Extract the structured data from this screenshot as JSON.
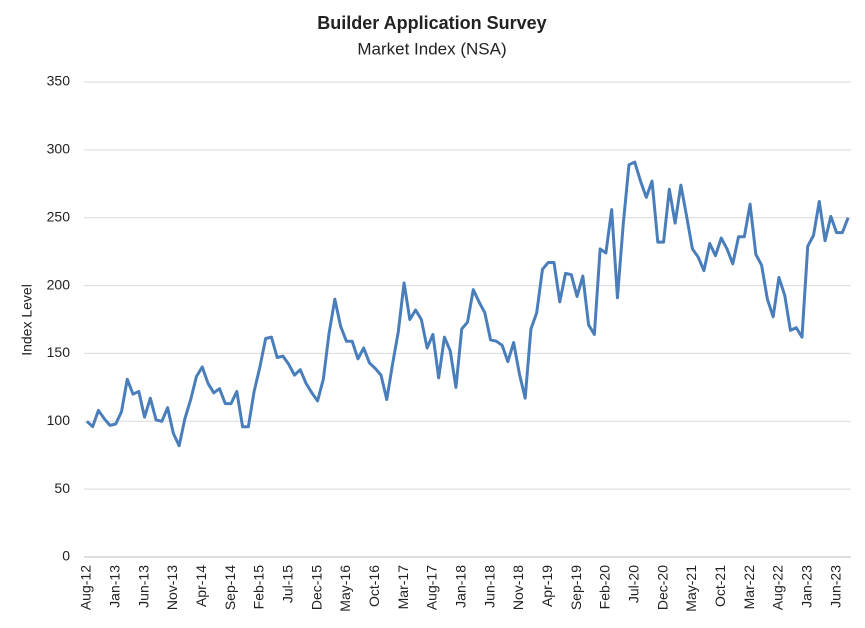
{
  "chart_data": {
    "type": "line",
    "title": "Builder Application Survey",
    "subtitle": "Market Index (NSA)",
    "y_label": "Index Level",
    "categories": [
      "Aug-12",
      null,
      null,
      null,
      null,
      "Jan-13",
      null,
      null,
      null,
      null,
      "Jun-13",
      null,
      null,
      null,
      null,
      "Nov-13",
      null,
      null,
      null,
      null,
      "Apr-14",
      null,
      null,
      null,
      null,
      "Sep-14",
      null,
      null,
      null,
      null,
      "Feb-15",
      null,
      null,
      null,
      null,
      "Jul-15",
      null,
      null,
      null,
      null,
      "Dec-15",
      null,
      null,
      null,
      null,
      "May-16",
      null,
      null,
      null,
      null,
      "Oct-16",
      null,
      null,
      null,
      null,
      "Mar-17",
      null,
      null,
      null,
      null,
      "Aug-17",
      null,
      null,
      null,
      null,
      "Jan-18",
      null,
      null,
      null,
      null,
      "Jun-18",
      null,
      null,
      null,
      null,
      "Nov-18",
      null,
      null,
      null,
      null,
      "Apr-19",
      null,
      null,
      null,
      null,
      "Sep-19",
      null,
      null,
      null,
      null,
      "Feb-20",
      null,
      null,
      null,
      null,
      "Jul-20",
      null,
      null,
      null,
      null,
      "Dec-20",
      null,
      null,
      null,
      null,
      "May-21",
      null,
      null,
      null,
      null,
      "Oct-21",
      null,
      null,
      null,
      null,
      "Mar-22",
      null,
      null,
      null,
      null,
      "Aug-22",
      null,
      null,
      null,
      null,
      "Jan-23",
      null,
      null,
      null,
      null,
      "Jun-23",
      null,
      null
    ],
    "values": [
      100,
      96,
      108,
      102,
      97,
      98,
      107,
      131,
      120,
      122,
      103,
      117,
      101,
      100,
      110,
      91,
      82,
      102,
      116,
      133,
      140,
      128,
      121,
      124,
      113,
      113,
      122,
      96,
      96,
      122,
      140,
      161,
      162,
      147,
      148,
      142,
      134,
      138,
      128,
      121,
      115,
      131,
      165,
      190,
      170,
      159,
      159,
      146,
      154,
      143,
      139,
      134,
      116,
      142,
      166,
      202,
      175,
      182,
      175,
      154,
      164,
      132,
      162,
      152,
      125,
      168,
      173,
      197,
      188,
      180,
      160,
      159,
      156,
      144,
      158,
      135,
      117,
      168,
      180,
      212,
      217,
      217,
      188,
      209,
      208,
      192,
      207,
      171,
      164,
      227,
      224,
      256,
      191,
      245,
      289,
      291,
      277,
      265,
      277,
      232,
      232,
      271,
      246,
      274,
      251,
      227,
      221,
      211,
      231,
      222,
      235,
      227,
      216,
      236,
      236,
      260,
      223,
      215,
      190,
      177,
      206,
      193,
      167,
      169,
      162,
      229,
      237,
      262,
      233,
      251,
      239,
      239,
      250
    ],
    "color": "#4a7ebb",
    "ylim": [
      0,
      350
    ],
    "yticks": [
      0,
      50,
      100,
      150,
      200,
      250,
      300,
      350
    ],
    "grid": true
  }
}
